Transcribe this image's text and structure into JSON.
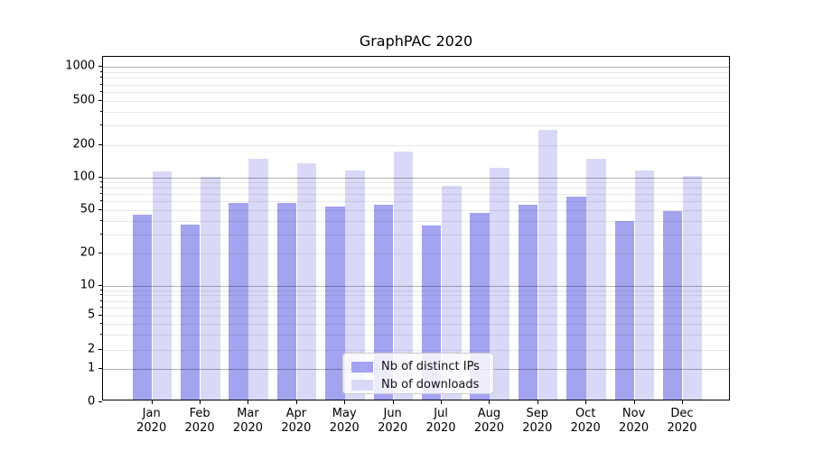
{
  "chart_data": {
    "type": "bar",
    "title": "GraphPAC 2020",
    "xlabel": "",
    "ylabel": "",
    "yscale": "log-like (symlog with 0 baseline)",
    "grid": true,
    "legend_position": "lower center",
    "y_ticks": [
      0,
      1,
      2,
      5,
      10,
      20,
      50,
      100,
      200,
      500,
      1000
    ],
    "y_minor_gridlines": [
      2,
      3,
      4,
      5,
      6,
      7,
      8,
      9,
      20,
      30,
      40,
      50,
      60,
      70,
      80,
      90,
      200,
      300,
      400,
      500,
      600,
      700,
      800,
      900
    ],
    "y_major_gridlines": [
      1,
      10,
      100,
      1000
    ],
    "ylim": [
      0,
      1300
    ],
    "categories": [
      {
        "month": "Jan",
        "year": "2020"
      },
      {
        "month": "Feb",
        "year": "2020"
      },
      {
        "month": "Mar",
        "year": "2020"
      },
      {
        "month": "Apr",
        "year": "2020"
      },
      {
        "month": "May",
        "year": "2020"
      },
      {
        "month": "Jun",
        "year": "2020"
      },
      {
        "month": "Jul",
        "year": "2020"
      },
      {
        "month": "Aug",
        "year": "2020"
      },
      {
        "month": "Sep",
        "year": "2020"
      },
      {
        "month": "Oct",
        "year": "2020"
      },
      {
        "month": "Nov",
        "year": "2020"
      },
      {
        "month": "Dec",
        "year": "2020"
      }
    ],
    "series": [
      {
        "name": "Nb of distinct IPs",
        "color": "#a3a3f0",
        "values": [
          44,
          36,
          57,
          57,
          52,
          54,
          35,
          46,
          54,
          65,
          39,
          48
        ]
      },
      {
        "name": "Nb of downloads",
        "color": "#d9d9f7",
        "values": [
          110,
          99,
          146,
          131,
          112,
          170,
          81,
          119,
          267,
          144,
          112,
          100
        ]
      }
    ]
  }
}
